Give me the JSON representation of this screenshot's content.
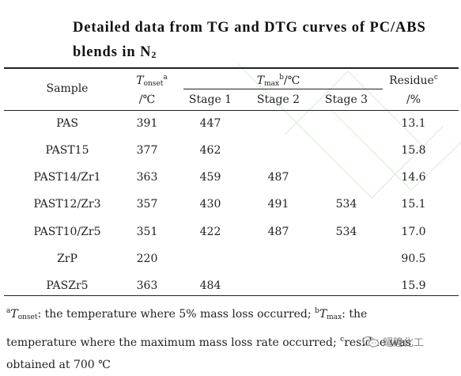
{
  "title": {
    "line1": "Detailed data from TG and DTG curves of PC/ABS",
    "line2_main": "blends in N",
    "line2_sub": "2"
  },
  "header": {
    "sample": "Sample",
    "tonset_T": "T",
    "tonset_sub": "onset",
    "tonset_sup": "a",
    "tonset_unit": "/℃",
    "tmax_T": "T",
    "tmax_sub": "max",
    "tmax_sup": "b",
    "tmax_unit": "/℃",
    "stage1": "Stage 1",
    "stage2": "Stage 2",
    "stage3": "Stage 3",
    "residue": "Residue",
    "residue_sup": "c",
    "residue_unit": "/%"
  },
  "rows": [
    {
      "sample": "PAS",
      "tonset": "391",
      "s1": "447",
      "s2": "",
      "s3": "",
      "residue": "13.1"
    },
    {
      "sample": "PAST15",
      "tonset": "377",
      "s1": "462",
      "s2": "",
      "s3": "",
      "residue": "15.8"
    },
    {
      "sample": "PAST14/Zr1",
      "tonset": "363",
      "s1": "459",
      "s2": "487",
      "s3": "",
      "residue": "14.6"
    },
    {
      "sample": "PAST12/Zr3",
      "tonset": "357",
      "s1": "430",
      "s2": "491",
      "s3": "534",
      "residue": "15.1"
    },
    {
      "sample": "PAST10/Zr5",
      "tonset": "351",
      "s1": "422",
      "s2": "487",
      "s3": "534",
      "residue": "17.0"
    },
    {
      "sample": "ZrP",
      "tonset": "220",
      "s1": "",
      "s2": "",
      "s3": "",
      "residue": "90.5"
    },
    {
      "sample": "PASZr5",
      "tonset": "363",
      "s1": "484",
      "s2": "",
      "s3": "",
      "residue": "15.9"
    }
  ],
  "footnote": {
    "a_mark": "a",
    "a_T": "T",
    "a_sub": "onset",
    "a_text": ": the temperature where 5% mass loss occurred;",
    "b_mark": "b",
    "b_T": "T",
    "b_sub": "max",
    "b_text1": ": the",
    "b_text2": "temperature where the maximum mass loss rate occurred;",
    "c_mark": "c",
    "c_text1": "residue was",
    "c_text2": "obtained at 700 ℃"
  },
  "watermark": {
    "text": "耀隆化工",
    "icon": "wechat-icon"
  }
}
